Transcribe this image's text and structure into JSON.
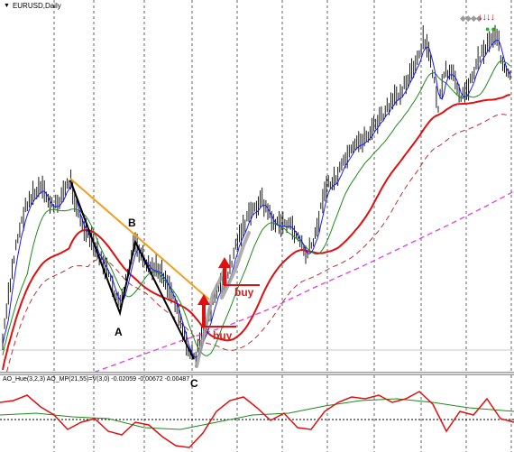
{
  "main_chart": {
    "symbol_label": "EURUSD,Daily",
    "dropdown_glyph": "▼",
    "pattern_labels": {
      "a": "A",
      "b": "B",
      "c": "C"
    },
    "buy_labels": [
      "buy",
      "buy"
    ],
    "toolbar_glyphs": "◆◆◆◆",
    "arrow_glyphs": "↓↓↓↓",
    "dot_glyphs": "●●",
    "colors": {
      "price": "#000000",
      "fast_ma": "#1a1aff",
      "mid_ma": "#1c8a1c",
      "slow_ma": "#e01010",
      "slow_ma_dashed": "#b83232",
      "long_ma_dashed": "#e040e0",
      "trendline": "#f0a020",
      "pattern": "#000000",
      "highlight": "#a0a0a0",
      "buy": "#e01010"
    }
  },
  "indicator_panel": {
    "label": "AO_Hue(3,2,3)  AO_MP(21,55)=V(3,0)  -0.02059  -0.00672  -0.00487",
    "colors": {
      "red_line": "#e01010",
      "green_line": "#1c8a1c"
    }
  }
}
